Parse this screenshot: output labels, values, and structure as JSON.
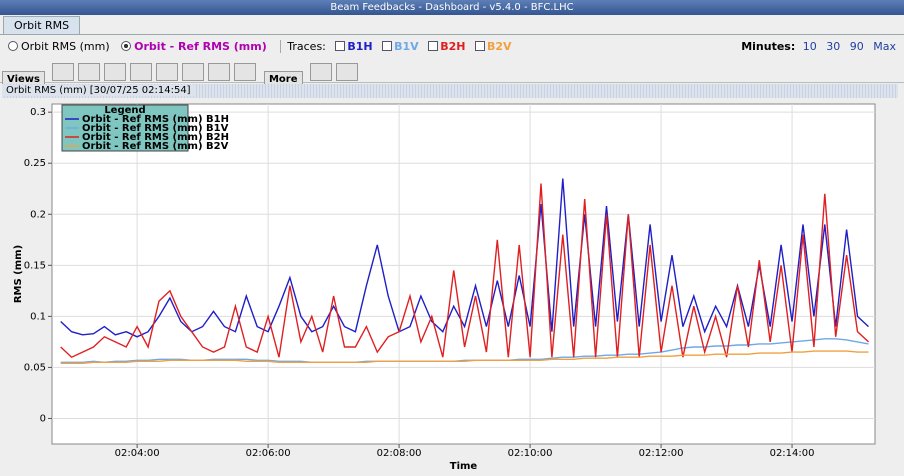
{
  "window": {
    "title": "Beam Feedbacks - Dashboard - v5.4.0 - BFC.LHC"
  },
  "tabs": [
    "Orbit RMS"
  ],
  "controls": {
    "modes": [
      "Orbit RMS (mm)",
      "Orbit - Ref RMS (mm)"
    ],
    "traces_label": "Traces:",
    "traces": [
      "B1H",
      "B1V",
      "B2H",
      "B2V"
    ],
    "minutes_label": "Minutes:",
    "minutes": [
      "10",
      "30",
      "90",
      "Max"
    ]
  },
  "toolbar": {
    "views": "Views",
    "more": "More"
  },
  "panel": {
    "title": "Orbit RMS (mm)  [30/07/25 02:14:54]"
  },
  "chart_data": {
    "type": "line",
    "xlabel": "Time",
    "ylabel": "RMS (mm)",
    "legend_title": "Legend",
    "legend": "upper left",
    "grid": true,
    "xlim": [
      "02:02:42",
      "02:15:16"
    ],
    "xticks": [
      "02:04:00",
      "02:06:00",
      "02:08:00",
      "02:10:00",
      "02:12:00",
      "02:14:00"
    ],
    "ylim": [
      -0.025,
      0.308
    ],
    "yticks": [
      0,
      0.05,
      0.1,
      0.15,
      0.2,
      0.25,
      0.3
    ],
    "x": [
      "02:02:50",
      "02:03:00",
      "02:03:10",
      "02:03:20",
      "02:03:30",
      "02:03:40",
      "02:03:50",
      "02:04:00",
      "02:04:10",
      "02:04:20",
      "02:04:30",
      "02:04:40",
      "02:04:50",
      "02:05:00",
      "02:05:10",
      "02:05:20",
      "02:05:30",
      "02:05:40",
      "02:05:50",
      "02:06:00",
      "02:06:10",
      "02:06:20",
      "02:06:30",
      "02:06:40",
      "02:06:50",
      "02:07:00",
      "02:07:10",
      "02:07:20",
      "02:07:30",
      "02:07:40",
      "02:07:50",
      "02:08:00",
      "02:08:10",
      "02:08:20",
      "02:08:30",
      "02:08:40",
      "02:08:50",
      "02:09:00",
      "02:09:10",
      "02:09:20",
      "02:09:30",
      "02:09:40",
      "02:09:50",
      "02:10:00",
      "02:10:10",
      "02:10:20",
      "02:10:30",
      "02:10:40",
      "02:10:50",
      "02:11:00",
      "02:11:10",
      "02:11:20",
      "02:11:30",
      "02:11:40",
      "02:11:50",
      "02:12:00",
      "02:12:10",
      "02:12:20",
      "02:12:30",
      "02:12:40",
      "02:12:50",
      "02:13:00",
      "02:13:10",
      "02:13:20",
      "02:13:30",
      "02:13:40",
      "02:13:50",
      "02:14:00",
      "02:14:10",
      "02:14:20",
      "02:14:30",
      "02:14:40",
      "02:14:50",
      "02:15:00",
      "02:15:10"
    ],
    "series": [
      {
        "name": "Orbit - Ref RMS (mm) B1H",
        "color": "#1f1fc8",
        "values": [
          0.095,
          0.085,
          0.082,
          0.083,
          0.09,
          0.082,
          0.085,
          0.08,
          0.085,
          0.1,
          0.118,
          0.095,
          0.085,
          0.09,
          0.105,
          0.09,
          0.085,
          0.12,
          0.09,
          0.085,
          0.11,
          0.138,
          0.1,
          0.085,
          0.09,
          0.11,
          0.09,
          0.085,
          0.13,
          0.17,
          0.12,
          0.085,
          0.09,
          0.12,
          0.095,
          0.085,
          0.11,
          0.09,
          0.13,
          0.09,
          0.135,
          0.09,
          0.14,
          0.09,
          0.21,
          0.085,
          0.235,
          0.09,
          0.2,
          0.09,
          0.208,
          0.095,
          0.2,
          0.09,
          0.19,
          0.095,
          0.16,
          0.09,
          0.12,
          0.085,
          0.11,
          0.09,
          0.13,
          0.09,
          0.15,
          0.09,
          0.17,
          0.095,
          0.19,
          0.1,
          0.19,
          0.09,
          0.185,
          0.1,
          0.09
        ]
      },
      {
        "name": "Orbit - Ref RMS (mm) B1V",
        "color": "#6fa8e8",
        "values": [
          0.055,
          0.055,
          0.055,
          0.056,
          0.055,
          0.056,
          0.056,
          0.057,
          0.057,
          0.058,
          0.058,
          0.058,
          0.057,
          0.057,
          0.058,
          0.058,
          0.058,
          0.058,
          0.057,
          0.057,
          0.056,
          0.056,
          0.056,
          0.055,
          0.055,
          0.055,
          0.055,
          0.055,
          0.056,
          0.056,
          0.056,
          0.056,
          0.056,
          0.056,
          0.056,
          0.056,
          0.056,
          0.057,
          0.057,
          0.057,
          0.057,
          0.057,
          0.058,
          0.058,
          0.058,
          0.059,
          0.06,
          0.06,
          0.061,
          0.061,
          0.062,
          0.062,
          0.063,
          0.063,
          0.064,
          0.065,
          0.067,
          0.069,
          0.07,
          0.07,
          0.071,
          0.071,
          0.072,
          0.072,
          0.073,
          0.073,
          0.074,
          0.075,
          0.076,
          0.077,
          0.078,
          0.078,
          0.077,
          0.075,
          0.073
        ]
      },
      {
        "name": "Orbit - Ref RMS (mm) B2H",
        "color": "#e02020",
        "values": [
          0.07,
          0.06,
          0.065,
          0.07,
          0.08,
          0.075,
          0.07,
          0.09,
          0.07,
          0.115,
          0.125,
          0.1,
          0.085,
          0.07,
          0.065,
          0.07,
          0.11,
          0.07,
          0.065,
          0.1,
          0.06,
          0.13,
          0.075,
          0.1,
          0.065,
          0.12,
          0.07,
          0.07,
          0.09,
          0.065,
          0.08,
          0.085,
          0.12,
          0.075,
          0.1,
          0.06,
          0.145,
          0.07,
          0.12,
          0.065,
          0.175,
          0.06,
          0.17,
          0.06,
          0.23,
          0.06,
          0.18,
          0.06,
          0.215,
          0.06,
          0.2,
          0.06,
          0.2,
          0.06,
          0.17,
          0.065,
          0.13,
          0.06,
          0.11,
          0.065,
          0.1,
          0.06,
          0.13,
          0.07,
          0.155,
          0.075,
          0.15,
          0.065,
          0.18,
          0.07,
          0.22,
          0.08,
          0.16,
          0.085,
          0.075
        ]
      },
      {
        "name": "Orbit - Ref RMS (mm) B2V",
        "color": "#f0a040",
        "values": [
          0.054,
          0.054,
          0.054,
          0.055,
          0.055,
          0.055,
          0.055,
          0.056,
          0.056,
          0.056,
          0.057,
          0.057,
          0.057,
          0.057,
          0.057,
          0.057,
          0.057,
          0.056,
          0.056,
          0.056,
          0.055,
          0.055,
          0.055,
          0.055,
          0.055,
          0.055,
          0.055,
          0.055,
          0.055,
          0.056,
          0.056,
          0.056,
          0.056,
          0.056,
          0.056,
          0.056,
          0.056,
          0.056,
          0.057,
          0.057,
          0.057,
          0.057,
          0.057,
          0.057,
          0.057,
          0.058,
          0.058,
          0.058,
          0.059,
          0.059,
          0.059,
          0.06,
          0.06,
          0.06,
          0.061,
          0.061,
          0.061,
          0.062,
          0.062,
          0.062,
          0.063,
          0.063,
          0.063,
          0.063,
          0.064,
          0.064,
          0.064,
          0.065,
          0.065,
          0.066,
          0.066,
          0.066,
          0.066,
          0.065,
          0.065
        ]
      }
    ]
  }
}
